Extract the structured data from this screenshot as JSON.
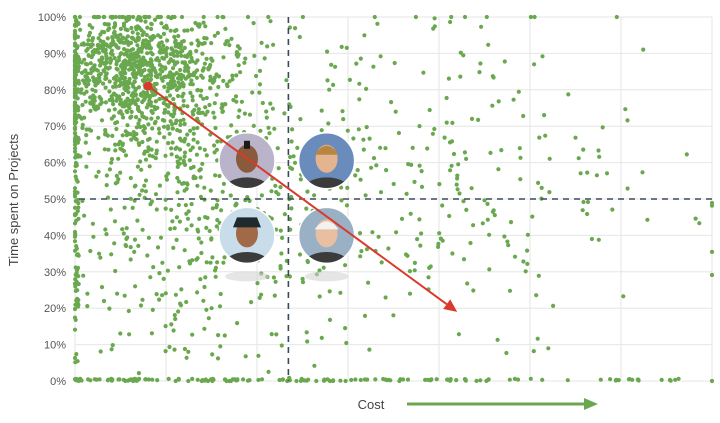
{
  "chart_data": {
    "type": "scatter",
    "title": "",
    "xlabel": "Cost",
    "ylabel": "Time spent on Projects",
    "ylim": [
      0,
      100
    ],
    "xlim": [
      0,
      100
    ],
    "y_ticks": [
      "0%",
      "10%",
      "20%",
      "30%",
      "40%",
      "50%",
      "60%",
      "70%",
      "80%",
      "90%",
      "100%"
    ],
    "x_ticks": [],
    "grid": true,
    "point_color": "#6aa84f",
    "dashed_reference_lines": {
      "x": 33.5,
      "y": 50
    },
    "trend_arrow": {
      "from": [
        11.5,
        81
      ],
      "to": [
        60,
        19
      ],
      "color": "#d93a2b"
    },
    "avatars": [
      {
        "name": "avatar-mohawk",
        "x": 27,
        "y": 60.5
      },
      {
        "name": "avatar-blond",
        "x": 39.5,
        "y": 60.5
      },
      {
        "name": "avatar-cap",
        "x": 27,
        "y": 40
      },
      {
        "name": "avatar-white-hair",
        "x": 39.5,
        "y": 40
      }
    ],
    "cost_arrow_color": "#6aa84f",
    "point_clusters": [
      {
        "cx": 9,
        "cy": 86,
        "sx": 7,
        "sy": 8,
        "n": 820
      },
      {
        "cx": 14,
        "cy": 70,
        "sx": 10,
        "sy": 14,
        "n": 380
      },
      {
        "cx": 20,
        "cy": 40,
        "sx": 12,
        "sy": 22,
        "n": 300
      },
      {
        "cx": 45,
        "cy": 55,
        "sx": 20,
        "sy": 25,
        "n": 260
      },
      {
        "cx": 70,
        "cy": 55,
        "sx": 18,
        "sy": 28,
        "n": 70
      }
    ]
  }
}
